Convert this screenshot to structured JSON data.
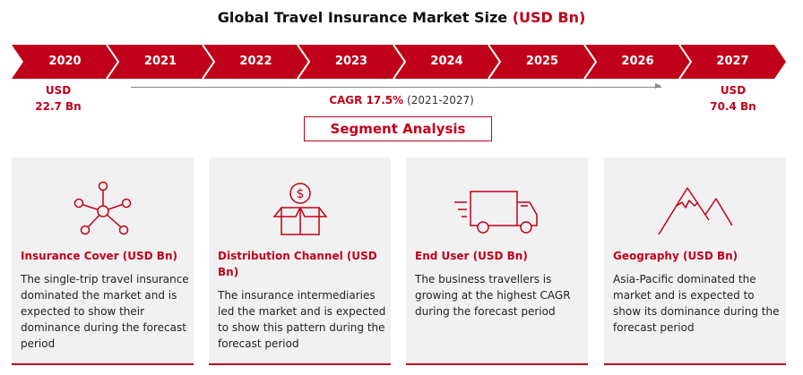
{
  "title": {
    "main": "Global Travel Insurance Market Size",
    "unit": "(USD Bn)"
  },
  "timeline": {
    "years": [
      "2020",
      "2021",
      "2022",
      "2023",
      "2024",
      "2025",
      "2026",
      "2027"
    ],
    "color": "#c0001b"
  },
  "start_value": {
    "currency": "USD",
    "amount": "22.7 Bn"
  },
  "end_value": {
    "currency": "USD",
    "amount": "70.4 Bn"
  },
  "cagr": {
    "label": "CAGR 17.5%",
    "period": "(2021-2027)"
  },
  "segment_heading": "Segment Analysis",
  "cards": [
    {
      "icon": "network-icon",
      "title": "Insurance Cover (USD Bn)",
      "body": "The single-trip travel insurance dominated the market and is expected to show their dominance during the forecast period"
    },
    {
      "icon": "money-box-icon",
      "title": "Distribution Channel (USD Bn)",
      "body": "The insurance intermediaries led the market and is expected to show this pattern during the forecast period"
    },
    {
      "icon": "delivery-truck-icon",
      "title": "End User (USD Bn)",
      "body": "The business travellers is growing at the highest CAGR during the forecast period"
    },
    {
      "icon": "mountain-icon",
      "title": "Geography (USD Bn)",
      "body": "Asia-Pacific dominated the market and is expected to show its dominance during the forecast period"
    }
  ]
}
